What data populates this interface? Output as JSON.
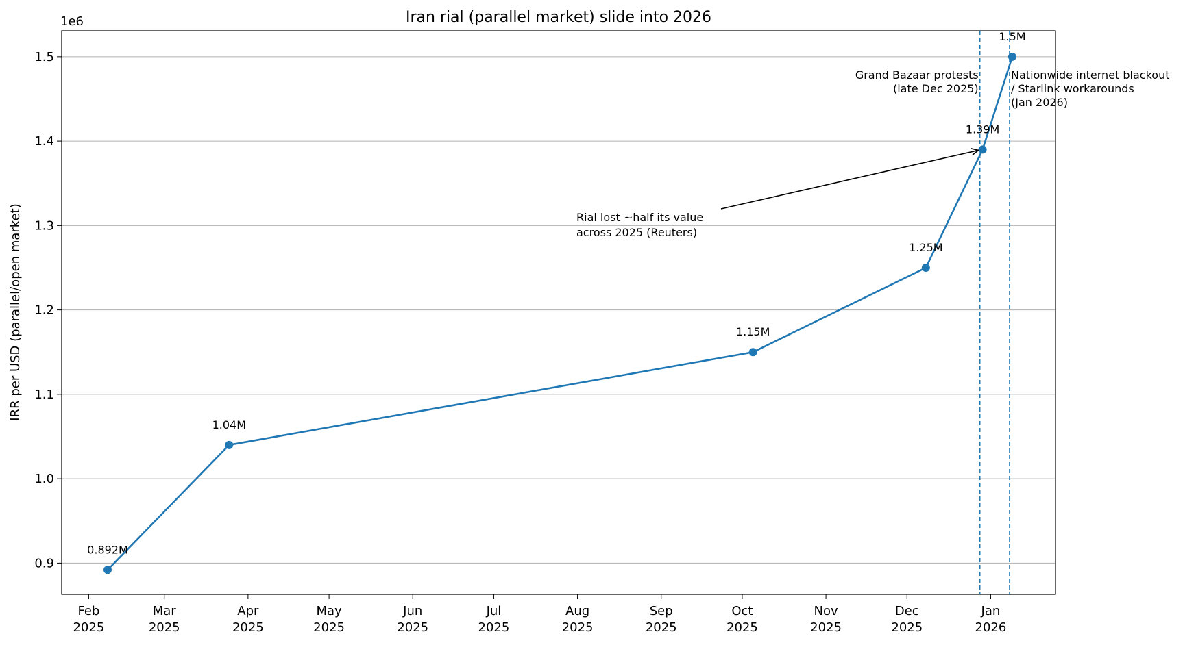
{
  "chart_data": {
    "type": "line",
    "title": "Iran rial (parallel market) slide into 2026",
    "y_label": "IRR per USD (parallel/open market)",
    "y_offset_label": "1e6",
    "x": [
      "2025-02-08",
      "2025-03-25",
      "2025-10-05",
      "2025-12-08",
      "2025-12-29",
      "2026-01-09"
    ],
    "series": [
      {
        "name": "IRR per USD",
        "color": "#1f77b4",
        "values": [
          892000,
          1040000,
          1150000,
          1250000,
          1390000,
          1500000
        ],
        "value_labels": [
          "0.892M",
          "1.04M",
          "1.15M",
          "1.25M",
          "1.39M",
          "1.5M"
        ]
      }
    ],
    "xlim": [
      "2025-01-22",
      "2026-01-25"
    ],
    "xticks": [
      {
        "value": "2025-02-01",
        "label": "Feb 2025"
      },
      {
        "value": "2025-03-01",
        "label": "Mar 2025"
      },
      {
        "value": "2025-04-01",
        "label": "Apr 2025"
      },
      {
        "value": "2025-05-01",
        "label": "May 2025"
      },
      {
        "value": "2025-06-01",
        "label": "Jun 2025"
      },
      {
        "value": "2025-07-01",
        "label": "Jul 2025"
      },
      {
        "value": "2025-08-01",
        "label": "Aug 2025"
      },
      {
        "value": "2025-09-01",
        "label": "Sep 2025"
      },
      {
        "value": "2025-10-01",
        "label": "Oct 2025"
      },
      {
        "value": "2025-11-01",
        "label": "Nov 2025"
      },
      {
        "value": "2025-12-01",
        "label": "Dec 2025"
      },
      {
        "value": "2026-01-01",
        "label": "Jan 2026"
      }
    ],
    "ylim": [
      863000,
      1530700
    ],
    "yticks": [
      {
        "value": 900000,
        "label": "0.9"
      },
      {
        "value": 1000000,
        "label": "1.0"
      },
      {
        "value": 1100000,
        "label": "1.1"
      },
      {
        "value": 1200000,
        "label": "1.2"
      },
      {
        "value": 1300000,
        "label": "1.3"
      },
      {
        "value": 1400000,
        "label": "1.4"
      },
      {
        "value": 1500000,
        "label": "1.5"
      }
    ],
    "grid": true,
    "events": [
      {
        "date": "2025-12-28",
        "label": "Grand Bazaar protests\n(late Dec 2025)",
        "side": "left"
      },
      {
        "date": "2026-01-08",
        "label": "Nationwide internet blackout\n/ Starlink workarounds\n(Jan 2026)",
        "side": "right"
      }
    ],
    "annotation": {
      "text": "Rial lost ~half its value\nacross 2025 (Reuters)",
      "target_index": 4
    }
  }
}
